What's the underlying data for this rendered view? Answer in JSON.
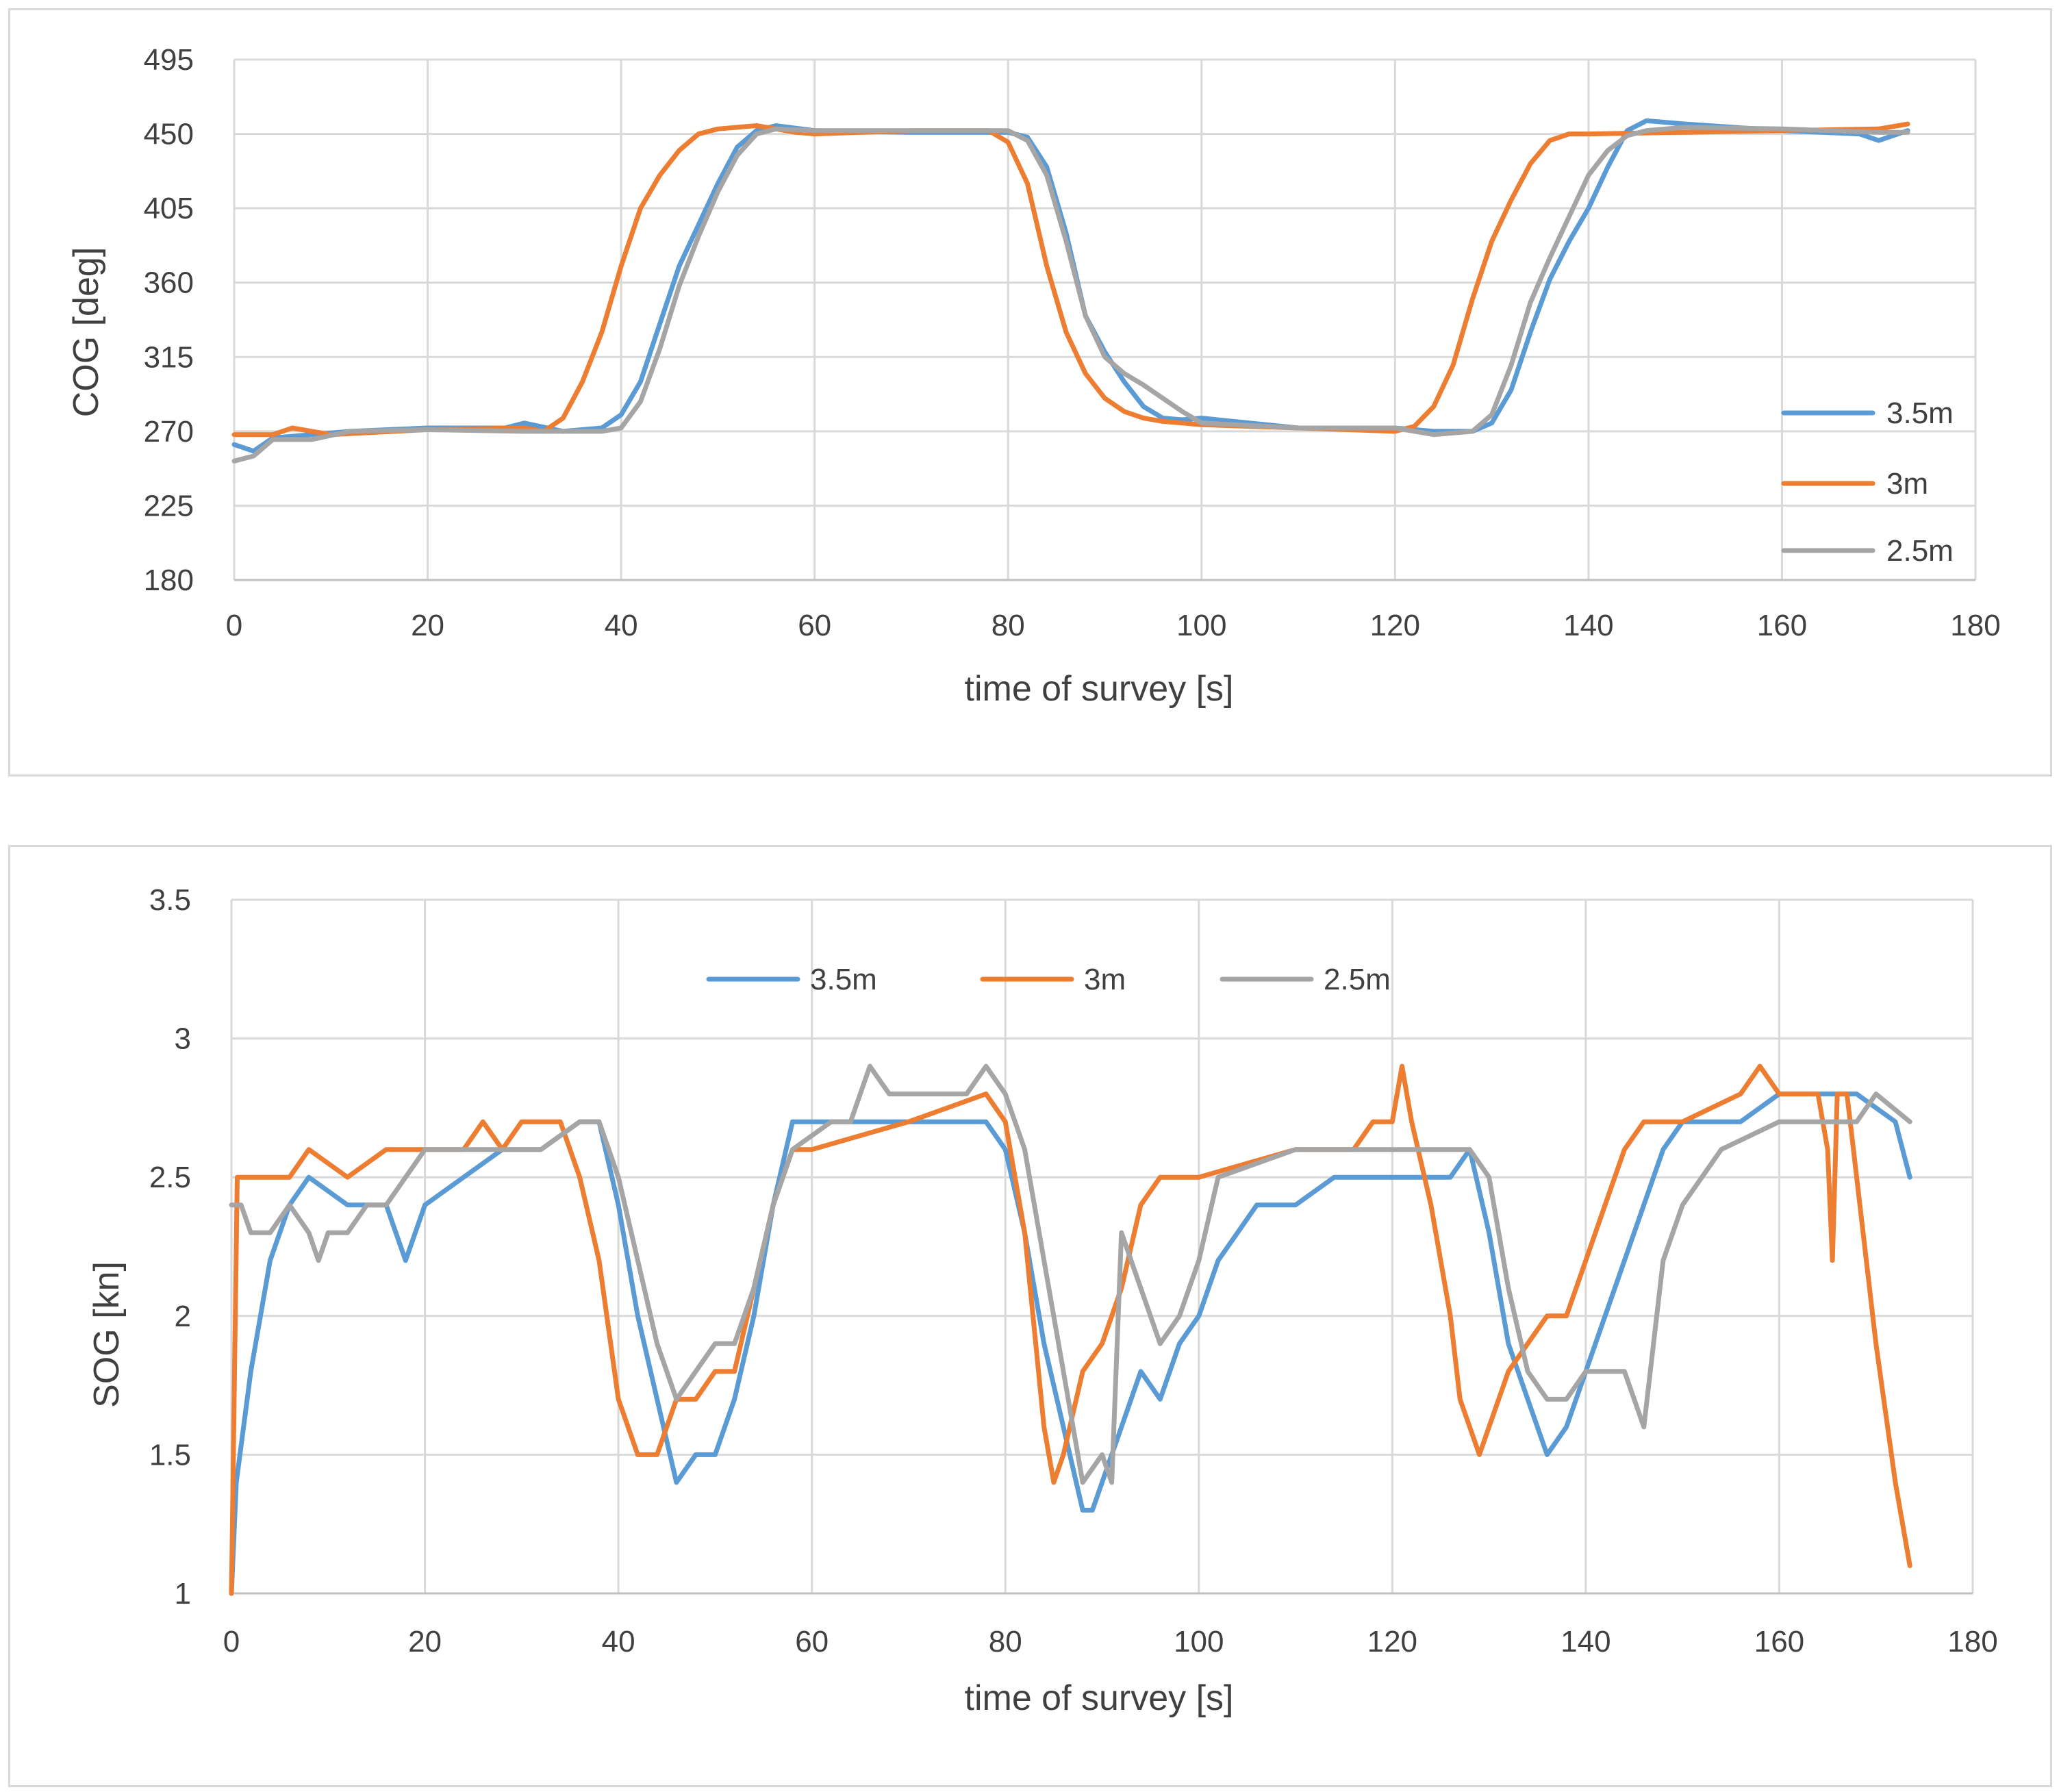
{
  "colors": {
    "s35": "#5b9bd5",
    "s3": "#ed7d31",
    "s25": "#a5a5a5",
    "grid": "#d9d9d9",
    "text": "#404040"
  },
  "chart_data": [
    {
      "type": "line",
      "title": "",
      "xlabel": "time of survey [s]",
      "ylabel": "COG [deg]",
      "xlim": [
        0,
        180
      ],
      "ylim": [
        180,
        495
      ],
      "xticks": [
        0,
        20,
        40,
        60,
        80,
        100,
        120,
        140,
        160,
        180
      ],
      "yticks": [
        180,
        225,
        270,
        315,
        360,
        405,
        450,
        495
      ],
      "legend": "right",
      "series": [
        {
          "name": "3.5m",
          "color": "#5b9bd5",
          "x": [
            0,
            2,
            4,
            8,
            12,
            20,
            28,
            30,
            34,
            38,
            40,
            42,
            44,
            46,
            48,
            50,
            52,
            54,
            56,
            60,
            70,
            80,
            82,
            84,
            86,
            88,
            90,
            92,
            94,
            96,
            98,
            100,
            110,
            120,
            124,
            128,
            130,
            132,
            134,
            136,
            138,
            140,
            142,
            144,
            146,
            150,
            160,
            168,
            170,
            173
          ],
          "y": [
            262,
            258,
            266,
            268,
            270,
            272,
            272,
            275,
            270,
            272,
            280,
            300,
            335,
            370,
            395,
            420,
            442,
            452,
            455,
            452,
            451,
            451,
            448,
            430,
            390,
            340,
            318,
            300,
            285,
            278,
            277,
            278,
            272,
            272,
            270,
            270,
            275,
            295,
            330,
            362,
            385,
            405,
            430,
            452,
            458,
            456,
            452,
            450,
            446,
            452
          ]
        },
        {
          "name": "3m",
          "color": "#ed7d31",
          "x": [
            0,
            4,
            6,
            10,
            20,
            30,
            32,
            34,
            36,
            38,
            40,
            42,
            44,
            46,
            48,
            50,
            54,
            58,
            60,
            70,
            78,
            80,
            82,
            84,
            86,
            88,
            90,
            92,
            94,
            96,
            98,
            100,
            110,
            120,
            122,
            124,
            126,
            128,
            130,
            132,
            134,
            136,
            138,
            140,
            150,
            160,
            170,
            173
          ],
          "y": [
            268,
            268,
            272,
            268,
            271,
            272,
            270,
            278,
            300,
            330,
            370,
            405,
            425,
            440,
            450,
            453,
            455,
            451,
            450,
            452,
            452,
            445,
            420,
            370,
            330,
            305,
            290,
            282,
            278,
            276,
            275,
            274,
            272,
            270,
            273,
            285,
            310,
            350,
            385,
            410,
            432,
            446,
            450,
            450,
            451,
            452,
            453,
            456
          ]
        },
        {
          "name": "2.5m",
          "color": "#a5a5a5",
          "x": [
            0,
            2,
            4,
            8,
            12,
            20,
            30,
            38,
            40,
            42,
            44,
            46,
            48,
            50,
            52,
            54,
            56,
            60,
            70,
            80,
            82,
            84,
            86,
            88,
            90,
            92,
            94,
            96,
            98,
            100,
            110,
            120,
            124,
            128,
            130,
            132,
            134,
            136,
            138,
            140,
            142,
            144,
            146,
            150,
            160,
            170,
            173
          ],
          "y": [
            252,
            255,
            265,
            265,
            270,
            271,
            270,
            270,
            272,
            288,
            320,
            358,
            388,
            415,
            437,
            450,
            453,
            452,
            452,
            452,
            446,
            425,
            385,
            340,
            315,
            305,
            298,
            290,
            282,
            275,
            272,
            272,
            268,
            270,
            280,
            310,
            348,
            375,
            400,
            425,
            440,
            449,
            452,
            454,
            453,
            451,
            451
          ]
        }
      ]
    },
    {
      "type": "line",
      "title": "",
      "xlabel": "time of survey [s]",
      "ylabel": "SOG [kn]",
      "xlim": [
        0,
        180
      ],
      "ylim": [
        1,
        3.5
      ],
      "xticks": [
        0,
        20,
        40,
        60,
        80,
        100,
        120,
        140,
        160,
        180
      ],
      "yticks": [
        1,
        1.5,
        2,
        2.5,
        3,
        3.5
      ],
      "legend": "top",
      "series": [
        {
          "name": "3.5m",
          "color": "#5b9bd5",
          "x": [
            0,
            0.5,
            2,
            4,
            6,
            8,
            12,
            16,
            18,
            20,
            24,
            28,
            32,
            36,
            38,
            40,
            42,
            44,
            46,
            48,
            50,
            52,
            54,
            56,
            58,
            62,
            70,
            78,
            80,
            82,
            84,
            86,
            88,
            89,
            90,
            92,
            94,
            96,
            98,
            100,
            102,
            104,
            106,
            110,
            114,
            118,
            122,
            126,
            128,
            130,
            132,
            134,
            136,
            138,
            140,
            142,
            144,
            146,
            148,
            150,
            156,
            160,
            164,
            168,
            172,
            173.5
          ],
          "y": [
            1.0,
            1.4,
            1.8,
            2.2,
            2.4,
            2.5,
            2.4,
            2.4,
            2.2,
            2.4,
            2.5,
            2.6,
            2.6,
            2.7,
            2.7,
            2.4,
            2.0,
            1.7,
            1.4,
            1.5,
            1.5,
            1.7,
            2.0,
            2.4,
            2.7,
            2.7,
            2.7,
            2.7,
            2.6,
            2.3,
            1.9,
            1.6,
            1.3,
            1.3,
            1.4,
            1.6,
            1.8,
            1.7,
            1.9,
            2.0,
            2.2,
            2.3,
            2.4,
            2.4,
            2.5,
            2.5,
            2.5,
            2.5,
            2.6,
            2.3,
            1.9,
            1.7,
            1.5,
            1.6,
            1.8,
            2.0,
            2.2,
            2.4,
            2.6,
            2.7,
            2.7,
            2.8,
            2.8,
            2.8,
            2.7,
            2.5
          ]
        },
        {
          "name": "3m",
          "color": "#ed7d31",
          "x": [
            0,
            0.6,
            2,
            6,
            8,
            12,
            16,
            20,
            24,
            26,
            28,
            30,
            34,
            36,
            38,
            40,
            42,
            44,
            46,
            48,
            50,
            52,
            54,
            56,
            58,
            60,
            70,
            78,
            80,
            82,
            84,
            85,
            86,
            88,
            90,
            92,
            94,
            96,
            98,
            100,
            110,
            116,
            118,
            120,
            121,
            122,
            124,
            126,
            127,
            128,
            129,
            130,
            132,
            134,
            136,
            138,
            140,
            142,
            144,
            146,
            150,
            156,
            158,
            160,
            164,
            165,
            165.5,
            166,
            167,
            168,
            170,
            172,
            173.5
          ],
          "y": [
            1.0,
            2.5,
            2.5,
            2.5,
            2.6,
            2.5,
            2.6,
            2.6,
            2.6,
            2.7,
            2.6,
            2.7,
            2.7,
            2.5,
            2.2,
            1.7,
            1.5,
            1.5,
            1.7,
            1.7,
            1.8,
            1.8,
            2.1,
            2.4,
            2.6,
            2.6,
            2.7,
            2.8,
            2.7,
            2.3,
            1.6,
            1.4,
            1.5,
            1.8,
            1.9,
            2.1,
            2.4,
            2.5,
            2.5,
            2.5,
            2.6,
            2.6,
            2.7,
            2.7,
            2.9,
            2.7,
            2.4,
            2.0,
            1.7,
            1.6,
            1.5,
            1.6,
            1.8,
            1.9,
            2.0,
            2.0,
            2.2,
            2.4,
            2.6,
            2.7,
            2.7,
            2.8,
            2.9,
            2.8,
            2.8,
            2.6,
            2.2,
            2.8,
            2.8,
            2.5,
            1.9,
            1.4,
            1.1
          ]
        },
        {
          "name": "2.5m",
          "color": "#a5a5a5",
          "x": [
            0,
            1,
            2,
            4,
            6,
            8,
            9,
            10,
            12,
            14,
            16,
            18,
            20,
            24,
            28,
            32,
            36,
            38,
            40,
            42,
            44,
            46,
            48,
            50,
            52,
            54,
            56,
            58,
            62,
            64,
            66,
            68,
            72,
            76,
            78,
            80,
            82,
            84,
            86,
            88,
            90,
            91,
            92,
            94,
            96,
            98,
            100,
            102,
            110,
            116,
            120,
            124,
            126,
            128,
            130,
            132,
            134,
            136,
            138,
            140,
            144,
            146,
            148,
            150,
            154,
            160,
            164,
            168,
            170,
            173.5
          ],
          "y": [
            2.4,
            2.4,
            2.3,
            2.3,
            2.4,
            2.3,
            2.2,
            2.3,
            2.3,
            2.4,
            2.4,
            2.5,
            2.6,
            2.6,
            2.6,
            2.6,
            2.7,
            2.7,
            2.5,
            2.2,
            1.9,
            1.7,
            1.8,
            1.9,
            1.9,
            2.1,
            2.4,
            2.6,
            2.7,
            2.7,
            2.9,
            2.8,
            2.8,
            2.8,
            2.9,
            2.8,
            2.6,
            2.2,
            1.8,
            1.4,
            1.5,
            1.4,
            2.3,
            2.1,
            1.9,
            2.0,
            2.2,
            2.5,
            2.6,
            2.6,
            2.6,
            2.6,
            2.6,
            2.6,
            2.5,
            2.1,
            1.8,
            1.7,
            1.7,
            1.8,
            1.8,
            1.6,
            2.2,
            2.4,
            2.6,
            2.7,
            2.7,
            2.7,
            2.8,
            2.7
          ]
        }
      ]
    }
  ]
}
